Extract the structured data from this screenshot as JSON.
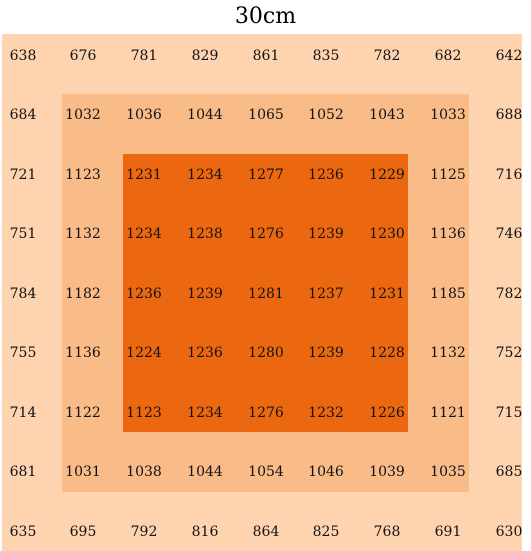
{
  "title": "30cm",
  "colors": {
    "outer": "#fdd3b0",
    "middle": "#f9bb88",
    "inner": "#ec6810",
    "text": "#111111"
  },
  "grid": {
    "rows": [
      [
        "638",
        "676",
        "781",
        "829",
        "861",
        "835",
        "782",
        "682",
        "642"
      ],
      [
        "684",
        "1032",
        "1036",
        "1044",
        "1065",
        "1052",
        "1043",
        "1033",
        "688"
      ],
      [
        "721",
        "1123",
        "1231",
        "1234",
        "1277",
        "1236",
        "1229",
        "1125",
        "716"
      ],
      [
        "751",
        "1132",
        "1234",
        "1238",
        "1276",
        "1239",
        "1230",
        "1136",
        "746"
      ],
      [
        "784",
        "1182",
        "1236",
        "1239",
        "1281",
        "1237",
        "1231",
        "1185",
        "782"
      ],
      [
        "755",
        "1136",
        "1224",
        "1236",
        "1280",
        "1239",
        "1228",
        "1132",
        "752"
      ],
      [
        "714",
        "1122",
        "1123",
        "1234",
        "1276",
        "1232",
        "1226",
        "1121",
        "715"
      ],
      [
        "681",
        "1031",
        "1038",
        "1044",
        "1054",
        "1046",
        "1039",
        "1035",
        "685"
      ],
      [
        "635",
        "695",
        "792",
        "816",
        "864",
        "825",
        "768",
        "691",
        "630"
      ]
    ]
  }
}
